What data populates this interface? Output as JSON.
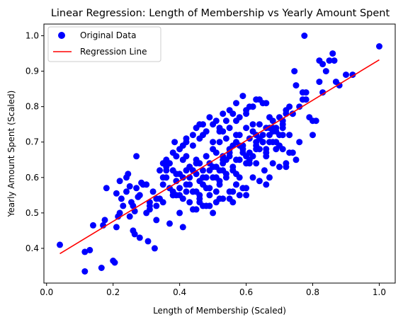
{
  "chart_data": {
    "type": "scatter",
    "title": "Linear Regression: Length of Membership vs Yearly Amount Spent",
    "xlabel": "Length of Membership (Scaled)",
    "ylabel": "Yearly Amount Spent (Scaled)",
    "xlim": [
      -0.008,
      1.048
    ],
    "ylim": [
      0.302,
      1.033
    ],
    "xticks": [
      "0.0",
      "0.2",
      "0.4",
      "0.6",
      "0.8",
      "1.0"
    ],
    "yticks": [
      "0.4",
      "0.5",
      "0.6",
      "0.7",
      "0.8",
      "0.9",
      "1.0"
    ],
    "grid": false,
    "legend": {
      "position": "top-left"
    },
    "series": [
      {
        "name": "Original Data",
        "kind": "scatter",
        "color": "#0000ff",
        "marker": "circle",
        "x": [
          0.04,
          0.115,
          0.13,
          0.165,
          0.115,
          0.14,
          0.17,
          0.175,
          0.18,
          0.2,
          0.205,
          0.21,
          0.215,
          0.22,
          0.225,
          0.23,
          0.24,
          0.25,
          0.255,
          0.26,
          0.265,
          0.27,
          0.28,
          0.285,
          0.3,
          0.305,
          0.31,
          0.325,
          0.33,
          0.21,
          0.265,
          0.275,
          0.245,
          0.25,
          0.3,
          0.35,
          0.36,
          0.37,
          0.38,
          0.39,
          0.4,
          0.41,
          0.42,
          0.43,
          0.44,
          0.45,
          0.46,
          0.47,
          0.48,
          0.49,
          0.5,
          0.51,
          0.52,
          0.53,
          0.54,
          0.55,
          0.56,
          0.57,
          0.58,
          0.59,
          0.6,
          0.61,
          0.62,
          0.63,
          0.64,
          0.65,
          0.66,
          0.67,
          0.68,
          0.69,
          0.7,
          0.71,
          0.72,
          0.73,
          0.74,
          0.75,
          0.76,
          0.77,
          0.78,
          0.79,
          0.8,
          0.81,
          0.82,
          0.83,
          0.84,
          0.85,
          0.86,
          0.87,
          0.88,
          0.9,
          0.92,
          1.0,
          0.775,
          0.745,
          0.865,
          0.82,
          0.35,
          0.36,
          0.38,
          0.4,
          0.42,
          0.44,
          0.46,
          0.48,
          0.5,
          0.52,
          0.54,
          0.56,
          0.58,
          0.6,
          0.62,
          0.64,
          0.66,
          0.68,
          0.7,
          0.72,
          0.74,
          0.34,
          0.36,
          0.37,
          0.39,
          0.41,
          0.43,
          0.45,
          0.47,
          0.49,
          0.51,
          0.53,
          0.55,
          0.57,
          0.59,
          0.61,
          0.63,
          0.65,
          0.67,
          0.69,
          0.71,
          0.35,
          0.37,
          0.39,
          0.41,
          0.43,
          0.45,
          0.47,
          0.49,
          0.51,
          0.53,
          0.55,
          0.57,
          0.59,
          0.61,
          0.63,
          0.65,
          0.67,
          0.69,
          0.71,
          0.73,
          0.38,
          0.4,
          0.42,
          0.44,
          0.46,
          0.48,
          0.5,
          0.52,
          0.54,
          0.56,
          0.58,
          0.6,
          0.62,
          0.64,
          0.66,
          0.68,
          0.7,
          0.42,
          0.44,
          0.46,
          0.48,
          0.5,
          0.52,
          0.54,
          0.56,
          0.58,
          0.6,
          0.62,
          0.64,
          0.66,
          0.45,
          0.47,
          0.49,
          0.51,
          0.53,
          0.55,
          0.57,
          0.59,
          0.61,
          0.63,
          0.36,
          0.38,
          0.4,
          0.43,
          0.45,
          0.48,
          0.5,
          0.53,
          0.55,
          0.58,
          0.6,
          0.63,
          0.65,
          0.33,
          0.35,
          0.39,
          0.41,
          0.44,
          0.46,
          0.49,
          0.52,
          0.54,
          0.57,
          0.31,
          0.34,
          0.38,
          0.42,
          0.47,
          0.51,
          0.56,
          0.61,
          0.66,
          0.71,
          0.76,
          0.8,
          0.57,
          0.59,
          0.62,
          0.655,
          0.68,
          0.7,
          0.73,
          0.75,
          0.51,
          0.53,
          0.56,
          0.58,
          0.6,
          0.52,
          0.55,
          0.57,
          0.45,
          0.48,
          0.4,
          0.43,
          0.46,
          0.49,
          0.57,
          0.62,
          0.67,
          0.72,
          0.77,
          0.83,
          0.27,
          0.29,
          0.32,
          0.24,
          0.22,
          0.26,
          0.28,
          0.31,
          0.33,
          0.44,
          0.47,
          0.5,
          0.53,
          0.36,
          0.39,
          0.6,
          0.65,
          0.69,
          0.72,
          0.78,
          0.52,
          0.55,
          0.42,
          0.41,
          0.385,
          0.46,
          0.63,
          0.68,
          0.71,
          0.74,
          0.67,
          0.64,
          0.66
        ],
        "y": [
          0.41,
          0.335,
          0.395,
          0.345,
          0.39,
          0.465,
          0.465,
          0.48,
          0.57,
          0.365,
          0.36,
          0.46,
          0.49,
          0.59,
          0.54,
          0.52,
          0.56,
          0.49,
          0.53,
          0.45,
          0.44,
          0.66,
          0.43,
          0.585,
          0.5,
          0.42,
          0.53,
          0.4,
          0.48,
          0.555,
          0.505,
          0.545,
          0.61,
          0.575,
          0.58,
          0.6,
          0.62,
          0.47,
          0.55,
          0.61,
          0.55,
          0.46,
          0.62,
          0.6,
          0.51,
          0.56,
          0.53,
          0.52,
          0.6,
          0.55,
          0.5,
          0.56,
          0.59,
          0.62,
          0.65,
          0.54,
          0.53,
          0.72,
          0.6,
          0.67,
          0.55,
          0.65,
          0.75,
          0.64,
          0.71,
          0.7,
          0.68,
          0.77,
          0.73,
          0.7,
          0.72,
          0.72,
          0.63,
          0.8,
          0.78,
          0.86,
          0.8,
          0.84,
          0.84,
          0.77,
          0.76,
          0.76,
          0.87,
          0.92,
          0.9,
          0.93,
          0.95,
          0.87,
          0.86,
          0.89,
          0.89,
          0.97,
          1.0,
          0.9,
          0.93,
          0.93,
          0.64,
          0.65,
          0.67,
          0.68,
          0.66,
          0.62,
          0.64,
          0.66,
          0.68,
          0.7,
          0.71,
          0.69,
          0.72,
          0.74,
          0.73,
          0.75,
          0.74,
          0.76,
          0.77,
          0.79,
          0.78,
          0.62,
          0.63,
          0.64,
          0.66,
          0.65,
          0.63,
          0.65,
          0.62,
          0.64,
          0.67,
          0.66,
          0.68,
          0.7,
          0.69,
          0.71,
          0.7,
          0.72,
          0.7,
          0.74,
          0.75,
          0.58,
          0.57,
          0.59,
          0.6,
          0.58,
          0.61,
          0.6,
          0.62,
          0.63,
          0.64,
          0.66,
          0.65,
          0.68,
          0.67,
          0.69,
          0.7,
          0.72,
          0.73,
          0.74,
          0.72,
          0.56,
          0.57,
          0.58,
          0.56,
          0.59,
          0.57,
          0.6,
          0.62,
          0.61,
          0.63,
          0.65,
          0.64,
          0.66,
          0.68,
          0.67,
          0.7,
          0.69,
          0.7,
          0.72,
          0.71,
          0.73,
          0.75,
          0.74,
          0.76,
          0.78,
          0.77,
          0.79,
          0.8,
          0.82,
          0.81,
          0.74,
          0.75,
          0.77,
          0.76,
          0.78,
          0.79,
          0.81,
          0.83,
          0.8,
          0.82,
          0.6,
          0.62,
          0.61,
          0.63,
          0.64,
          0.66,
          0.63,
          0.65,
          0.67,
          0.69,
          0.66,
          0.68,
          0.7,
          0.52,
          0.53,
          0.55,
          0.54,
          0.56,
          0.55,
          0.57,
          0.58,
          0.6,
          0.61,
          0.52,
          0.54,
          0.55,
          0.56,
          0.58,
          0.6,
          0.62,
          0.64,
          0.66,
          0.68,
          0.7,
          0.72,
          0.58,
          0.57,
          0.6,
          0.62,
          0.64,
          0.63,
          0.67,
          0.65,
          0.53,
          0.54,
          0.56,
          0.55,
          0.57,
          0.54,
          0.56,
          0.58,
          0.51,
          0.52,
          0.5,
          0.53,
          0.54,
          0.52,
          0.76,
          0.8,
          0.74,
          0.78,
          0.82,
          0.84,
          0.57,
          0.58,
          0.56,
          0.6,
          0.5,
          0.52,
          0.55,
          0.51,
          0.54,
          0.69,
          0.72,
          0.7,
          0.73,
          0.64,
          0.66,
          0.78,
          0.81,
          0.68,
          0.64,
          0.82,
          0.73,
          0.74,
          0.71,
          0.69,
          0.7,
          0.75,
          0.72,
          0.74,
          0.76,
          0.67,
          0.6,
          0.59,
          0.58
        ]
      },
      {
        "name": "Regression Line",
        "kind": "line",
        "color": "#ff0000",
        "x": [
          0.04,
          1.0
        ],
        "y": [
          0.385,
          0.932
        ]
      }
    ]
  }
}
